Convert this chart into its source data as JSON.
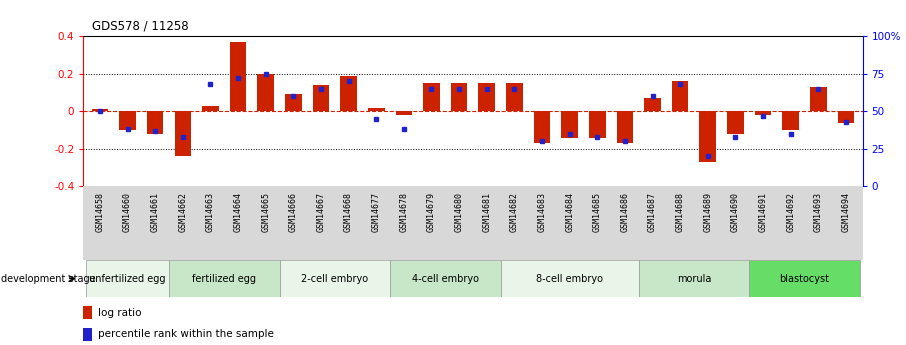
{
  "title": "GDS578 / 11258",
  "samples": [
    "GSM14658",
    "GSM14660",
    "GSM14661",
    "GSM14662",
    "GSM14663",
    "GSM14664",
    "GSM14665",
    "GSM14666",
    "GSM14667",
    "GSM14668",
    "GSM14677",
    "GSM14678",
    "GSM14679",
    "GSM14680",
    "GSM14681",
    "GSM14682",
    "GSM14683",
    "GSM14684",
    "GSM14685",
    "GSM14686",
    "GSM14687",
    "GSM14688",
    "GSM14689",
    "GSM14690",
    "GSM14691",
    "GSM14692",
    "GSM14693",
    "GSM14694"
  ],
  "log_ratio": [
    0.01,
    -0.1,
    -0.12,
    -0.24,
    0.03,
    0.37,
    0.2,
    0.09,
    0.14,
    0.19,
    0.02,
    -0.02,
    0.15,
    0.15,
    0.15,
    0.15,
    -0.17,
    -0.14,
    -0.14,
    -0.17,
    0.07,
    0.16,
    -0.27,
    -0.12,
    -0.02,
    -0.1,
    0.13,
    -0.06
  ],
  "percentile": [
    50,
    38,
    37,
    33,
    68,
    72,
    75,
    60,
    65,
    70,
    45,
    38,
    65,
    65,
    65,
    65,
    30,
    35,
    33,
    30,
    60,
    68,
    20,
    33,
    47,
    35,
    65,
    43
  ],
  "stages": [
    {
      "label": "unfertilized egg",
      "start": 0,
      "end": 3
    },
    {
      "label": "fertilized egg",
      "start": 3,
      "end": 7
    },
    {
      "label": "2-cell embryo",
      "start": 7,
      "end": 11
    },
    {
      "label": "4-cell embryo",
      "start": 11,
      "end": 15
    },
    {
      "label": "8-cell embryo",
      "start": 15,
      "end": 20
    },
    {
      "label": "morula",
      "start": 20,
      "end": 24
    },
    {
      "label": "blastocyst",
      "start": 24,
      "end": 28
    }
  ],
  "stage_colors": [
    "#e8f5e8",
    "#c8e6c8",
    "#e8f5e8",
    "#c8e6c8",
    "#e8f5e8",
    "#c8e6c8",
    "#66dd66"
  ],
  "bar_color": "#cc2200",
  "dot_color": "#2222cc",
  "ylim": [
    -0.4,
    0.4
  ],
  "y2lim": [
    0,
    100
  ],
  "yticks": [
    -0.4,
    -0.2,
    0.0,
    0.2,
    0.4
  ],
  "y2ticks": [
    0,
    25,
    50,
    75,
    100
  ],
  "bg_color": "#ffffff",
  "xtick_bg": "#d8d8d8"
}
